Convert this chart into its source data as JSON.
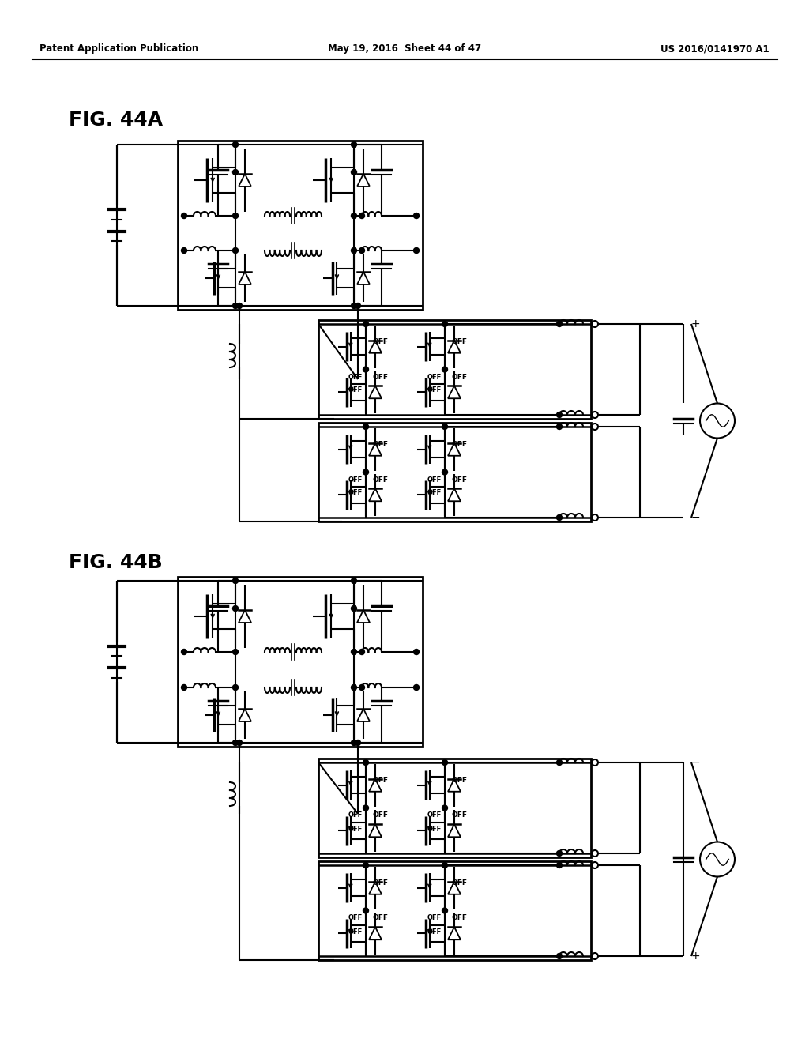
{
  "header_left": "Patent Application Publication",
  "header_center": "May 19, 2016  Sheet 44 of 47",
  "header_right": "US 2016/0141970 A1",
  "fig44a_label": "FIG. 44A",
  "fig44b_label": "FIG. 44B",
  "background_color": "#ffffff"
}
